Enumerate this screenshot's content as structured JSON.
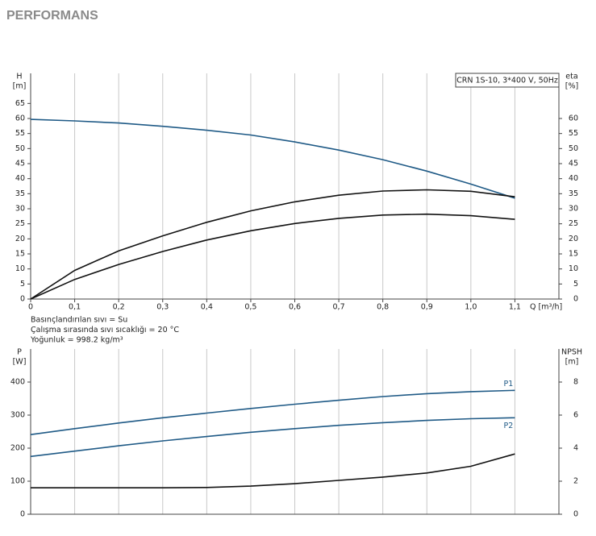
{
  "header": {
    "title": "PERFORMANS"
  },
  "chart_data": [
    {
      "type": "line",
      "title": "CRN 1S-10, 3*400 V, 50Hz",
      "annotations": [
        "Basınçlandırılan sıvı = Su",
        "Çalışma sırasında sıvı sıcaklığı = 20 °C",
        "Yoğunluk = 998.2 kg/m³"
      ],
      "xlabel": "Q [m³/h]",
      "ylabel": "H",
      "yunit": "[m]",
      "y2label": "eta",
      "y2unit": "[%]",
      "x": [
        0,
        0.1,
        0.2,
        0.3,
        0.4,
        0.5,
        0.6,
        0.7,
        0.8,
        0.9,
        1.0,
        1.1
      ],
      "xlim": [
        0,
        1.2
      ],
      "xticks": [
        0,
        {
          "value": 0.1,
          "label": "0,1"
        },
        {
          "value": 0.2,
          "label": "0,2"
        },
        {
          "value": 0.3,
          "label": "0,3"
        },
        {
          "value": 0.4,
          "label": "0,4"
        },
        {
          "value": 0.5,
          "label": "0,5"
        },
        {
          "value": 0.6,
          "label": "0,6"
        },
        {
          "value": 0.7,
          "label": "0,7"
        },
        {
          "value": 0.8,
          "label": "0,8"
        },
        {
          "value": 0.9,
          "label": "0,9"
        },
        {
          "value": 1.0,
          "label": "1,0"
        },
        {
          "value": 1.1,
          "label": "1,1"
        }
      ],
      "ylim": [
        0,
        75
      ],
      "yticks": [
        0,
        5,
        10,
        15,
        20,
        25,
        30,
        35,
        40,
        45,
        50,
        55,
        60,
        65
      ],
      "y2lim": [
        0,
        75
      ],
      "y2ticks": [
        0,
        5,
        10,
        15,
        20,
        25,
        30,
        35,
        40,
        45,
        50,
        55,
        60
      ],
      "grid": "x",
      "series": [
        {
          "color": "#1f5a86",
          "values": [
            59.7,
            59.2,
            58.5,
            57.4,
            56.1,
            54.5,
            52.2,
            49.5,
            46.3,
            42.5,
            38.2,
            33.5
          ]
        },
        {
          "color": "#111111",
          "axis": "y2",
          "values": [
            0,
            9.5,
            16,
            21,
            25.5,
            29.3,
            32.3,
            34.5,
            35.9,
            36.3,
            35.8,
            34
          ]
        },
        {
          "color": "#111111",
          "axis": "y2",
          "values": [
            0,
            6.5,
            11.5,
            15.8,
            19.6,
            22.7,
            25.1,
            26.8,
            27.9,
            28.2,
            27.7,
            26.5
          ]
        }
      ]
    },
    {
      "type": "line",
      "ylabel": "P",
      "yunit": "[W]",
      "y2label": "NPSH",
      "y2unit": "[m]",
      "x": [
        0,
        0.1,
        0.2,
        0.3,
        0.4,
        0.5,
        0.6,
        0.7,
        0.8,
        0.9,
        1.0,
        1.1
      ],
      "xlim": [
        0,
        1.2
      ],
      "xgrid": [
        0.1,
        0.2,
        0.3,
        0.4,
        0.5,
        0.6,
        0.7,
        0.8,
        0.9,
        1.0,
        1.1
      ],
      "ylim": [
        0,
        500
      ],
      "yticks": [
        0,
        100,
        200,
        300,
        400
      ],
      "y2lim": [
        0,
        10
      ],
      "y2ticks": [
        0,
        2,
        4,
        6,
        8
      ],
      "grid": "x",
      "series": [
        {
          "name": "P1",
          "color": "#1f5a86",
          "values": [
            241,
            259,
            276,
            292,
            306,
            320,
            333,
            345,
            356,
            365,
            371,
            375
          ]
        },
        {
          "name": "P2",
          "color": "#1f5a86",
          "values": [
            175,
            191,
            207,
            222,
            235,
            248,
            259,
            269,
            277,
            284,
            289,
            292
          ]
        },
        {
          "color": "#111111",
          "axis": "y2",
          "values": [
            1.6,
            1.6,
            1.6,
            1.6,
            1.62,
            1.7,
            1.85,
            2.05,
            2.25,
            2.5,
            2.9,
            3.65
          ]
        }
      ]
    }
  ]
}
